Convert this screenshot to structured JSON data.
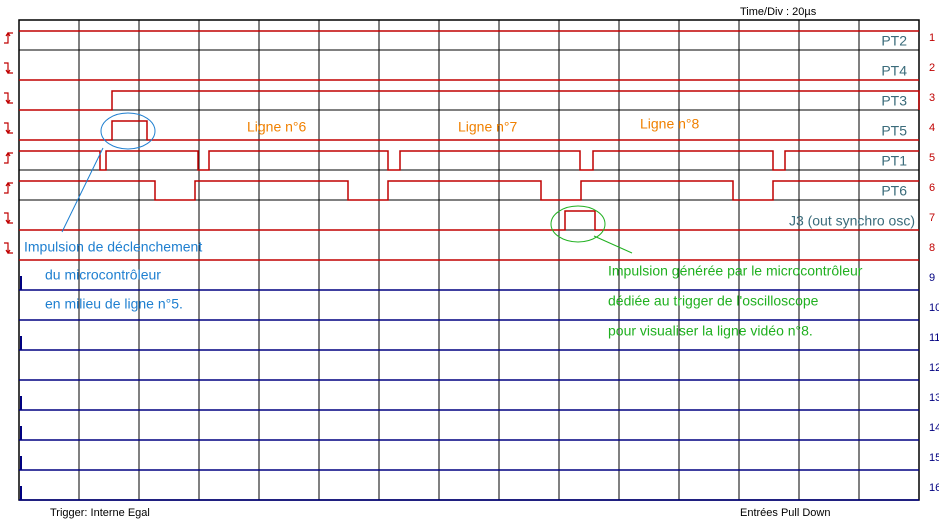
{
  "header": {
    "time_div": "Time/Div : 20µs"
  },
  "channel_names": [
    "PT2",
    "PT4",
    "PT3",
    "PT5",
    "PT1",
    "PT6",
    "J3 (out synchro osc)"
  ],
  "row_numbers": [
    1,
    2,
    3,
    4,
    5,
    6,
    7,
    8,
    9,
    10,
    11,
    12,
    13,
    14,
    15,
    16
  ],
  "line_labels": [
    "Ligne n°6",
    "Ligne n°7",
    "Ligne n°8"
  ],
  "trigger_note": [
    "Impulsion de déclenchement",
    "du microcontrôleur",
    "en milieu de ligne n°5."
  ],
  "scope_note": [
    "Impulsion générée par le microcontrôleur",
    "dédiée au trigger de l'oscilloscope",
    "pour visualiser la ligne vidéo n°8."
  ],
  "footer": {
    "trigger": "Trigger: Interne Egal",
    "inputs": "Entrées Pull Down"
  }
}
